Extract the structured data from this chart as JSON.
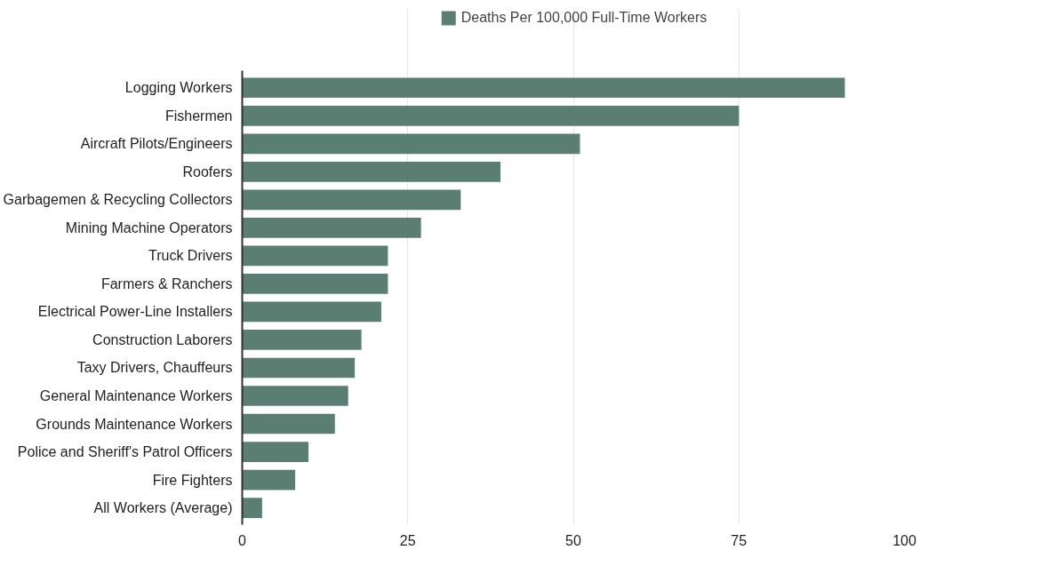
{
  "chart_data": {
    "type": "bar",
    "orientation": "horizontal",
    "categories": [
      "Logging Workers",
      "Fishermen",
      "Aircraft Pilots/Engineers",
      "Roofers",
      "Garbagemen & Recycling Collectors",
      "Mining Machine Operators",
      "Truck Drivers",
      "Farmers & Ranchers",
      "Electrical Power-Line Installers",
      "Construction Laborers",
      "Taxy Drivers, Chauffeurs",
      "General Maintenance Workers",
      "Grounds Maintenance Workers",
      "Police and Sheriff's Patrol Officers",
      "Fire Fighters",
      "All Workers (Average)"
    ],
    "series": [
      {
        "name": "Deaths Per 100,000 Full-Time Workers",
        "color": "#5a7f72",
        "values": [
          91,
          75,
          51,
          39,
          33,
          27,
          22,
          22,
          21,
          18,
          17,
          16,
          14,
          10,
          8,
          3
        ]
      }
    ],
    "xlim": [
      0,
      100
    ],
    "xticks": [
      0,
      25,
      50,
      75,
      100
    ],
    "grid": "x",
    "legend": "top"
  }
}
